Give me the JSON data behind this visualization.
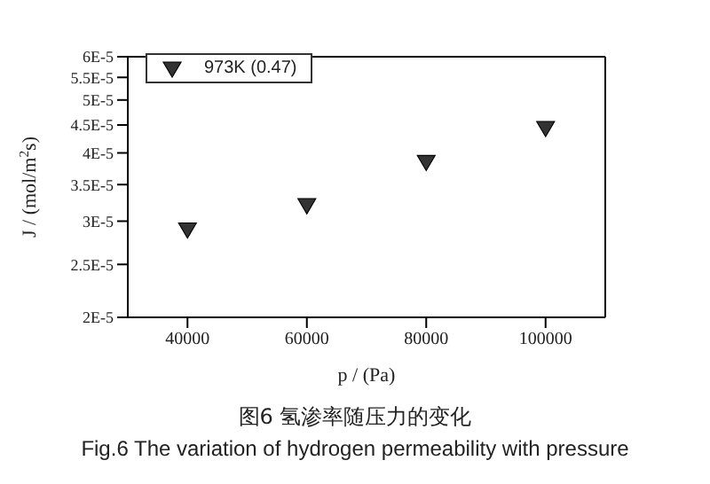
{
  "chart_data": {
    "type": "scatter",
    "title": "图6 氢渗率随压力的变化",
    "subtitle": "Fig.6 The variation of hydrogen permeability with pressure",
    "xlabel": "p / (Pa)",
    "ylabel": "J / (mol/m$^{2}$s)",
    "x": [
      40000,
      60000,
      80000,
      100000
    ],
    "series": [
      {
        "name": "973K (0.47)",
        "color": "#333333",
        "values": [
          2.89e-05,
          3.2e-05,
          3.84e-05,
          4.43e-05
        ]
      }
    ],
    "xlim": [
      30000,
      110000
    ],
    "xticks": [
      40000,
      60000,
      80000,
      100000
    ],
    "ylim": [
      2e-05,
      6e-05
    ],
    "yticks": [
      {
        "value": 2e-05,
        "label": "2E-5"
      },
      {
        "value": 2.5e-05,
        "label": "2.5E-5"
      },
      {
        "value": 3e-05,
        "label": "3E-5"
      },
      {
        "value": 3.5e-05,
        "label": "3.5E-5"
      },
      {
        "value": 4e-05,
        "label": "4E-5"
      },
      {
        "value": 4.5e-05,
        "label": "4.5E-5"
      },
      {
        "value": 5e-05,
        "label": "5E-5"
      },
      {
        "value": 5.5e-05,
        "label": "5.5E-5"
      },
      {
        "value": 6e-05,
        "label": "6E-5"
      }
    ],
    "log": "y",
    "legend": "top left",
    "marker": "triangle",
    "grid": false
  }
}
